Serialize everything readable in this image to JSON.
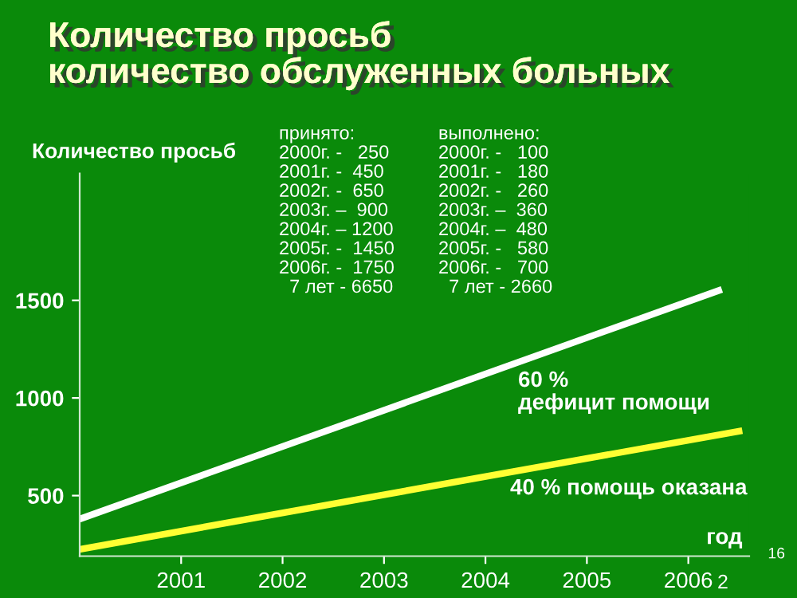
{
  "chart_data": {
    "type": "line",
    "title": "Количество просьб\nколичество обслуженных больных",
    "ylabel": "Количество просьб",
    "xlabel": "год",
    "series": [
      {
        "color": "#ffffff",
        "x": [
          2000.0,
          2006.3
        ],
        "values": [
          380,
          1550
        ]
      },
      {
        "color": "#ffff33",
        "x": [
          2000.0,
          2006.5
        ],
        "values": [
          225,
          830
        ]
      }
    ],
    "xlim": [
      2000,
      2006.6
    ],
    "xticks": [
      2001,
      2002,
      2003,
      2004,
      2005,
      2006
    ],
    "ylim": [
      190,
      2150
    ],
    "yticks": [
      500,
      1000,
      1500
    ],
    "grid": false,
    "legend": false,
    "marker": "none",
    "line_style": "solid",
    "annotations": [
      "принято:\n2000г. -   250\n2001г. -  450\n2002г. -  650\n2003г. –  900\n2004г. – 1200\n2005г. -  1450\n2006г. -  1750\n  7 лет - 6650",
      "выполнено:\n2000г. -   100\n2001г. -   180\n2002г. -   260\n2003г. –  360\n2004г. –  480\n2005г. -   580\n2006г. -   700\n  7 лет - 2660",
      "60 %\nдефицит помощи",
      "40 % помощь оказана",
      "16",
      "2"
    ]
  }
}
